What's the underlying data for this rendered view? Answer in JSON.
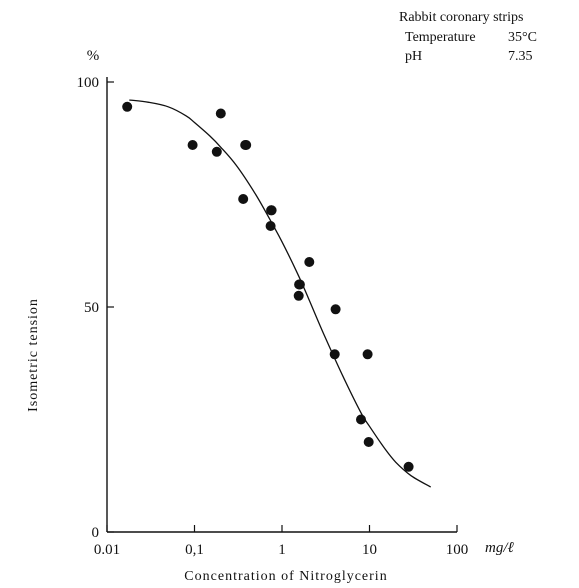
{
  "chart_data": {
    "type": "scatter",
    "title": "",
    "xlabel": "Concentration of Nitroglycerin",
    "ylabel": "Isometric tension",
    "x_scale": "log",
    "x_unit": "mg/ℓ",
    "y_unit": "%",
    "xlim": [
      0.01,
      100
    ],
    "ylim": [
      0,
      100
    ],
    "x_ticks": [
      0.01,
      0.1,
      1,
      10,
      100
    ],
    "x_tick_labels": [
      "0.01",
      "0,1",
      "1",
      "10",
      "100"
    ],
    "y_ticks": [
      0,
      50,
      100
    ],
    "y_tick_labels": [
      "0",
      "50",
      "100"
    ],
    "grid": false,
    "annotation": {
      "line1": "Rabbit coronary strips",
      "line2_label": "Temperature",
      "line2_value": "35°C",
      "line3_label": "pH",
      "line3_value": "7.35"
    },
    "series": [
      {
        "kind": "points",
        "x": [
          0.017,
          0.095,
          0.18,
          0.2,
          0.36,
          0.38,
          0.39,
          0.74,
          0.75,
          0.76,
          1.55,
          1.57,
          1.6,
          2.05,
          4.0,
          4.1,
          8.0,
          9.5,
          9.8,
          28.0
        ],
        "y": [
          94.5,
          86,
          84.5,
          93,
          74,
          86,
          86,
          68,
          71.5,
          71.5,
          52.5,
          55,
          55,
          60,
          39.5,
          49.5,
          25,
          39.5,
          20,
          14.5
        ]
      },
      {
        "kind": "fitted-curve",
        "x": [
          0.018,
          0.03,
          0.05,
          0.08,
          0.1,
          0.15,
          0.2,
          0.3,
          0.5,
          0.8,
          1,
          1.5,
          2,
          3,
          5,
          8,
          10,
          15,
          20,
          30,
          50
        ],
        "y": [
          96,
          95.5,
          94.5,
          92.5,
          91,
          88,
          85.5,
          81.5,
          75,
          68,
          64.5,
          57.5,
          52,
          44,
          34.5,
          26.5,
          23.5,
          18.5,
          15.5,
          12.5,
          10
        ]
      }
    ]
  }
}
